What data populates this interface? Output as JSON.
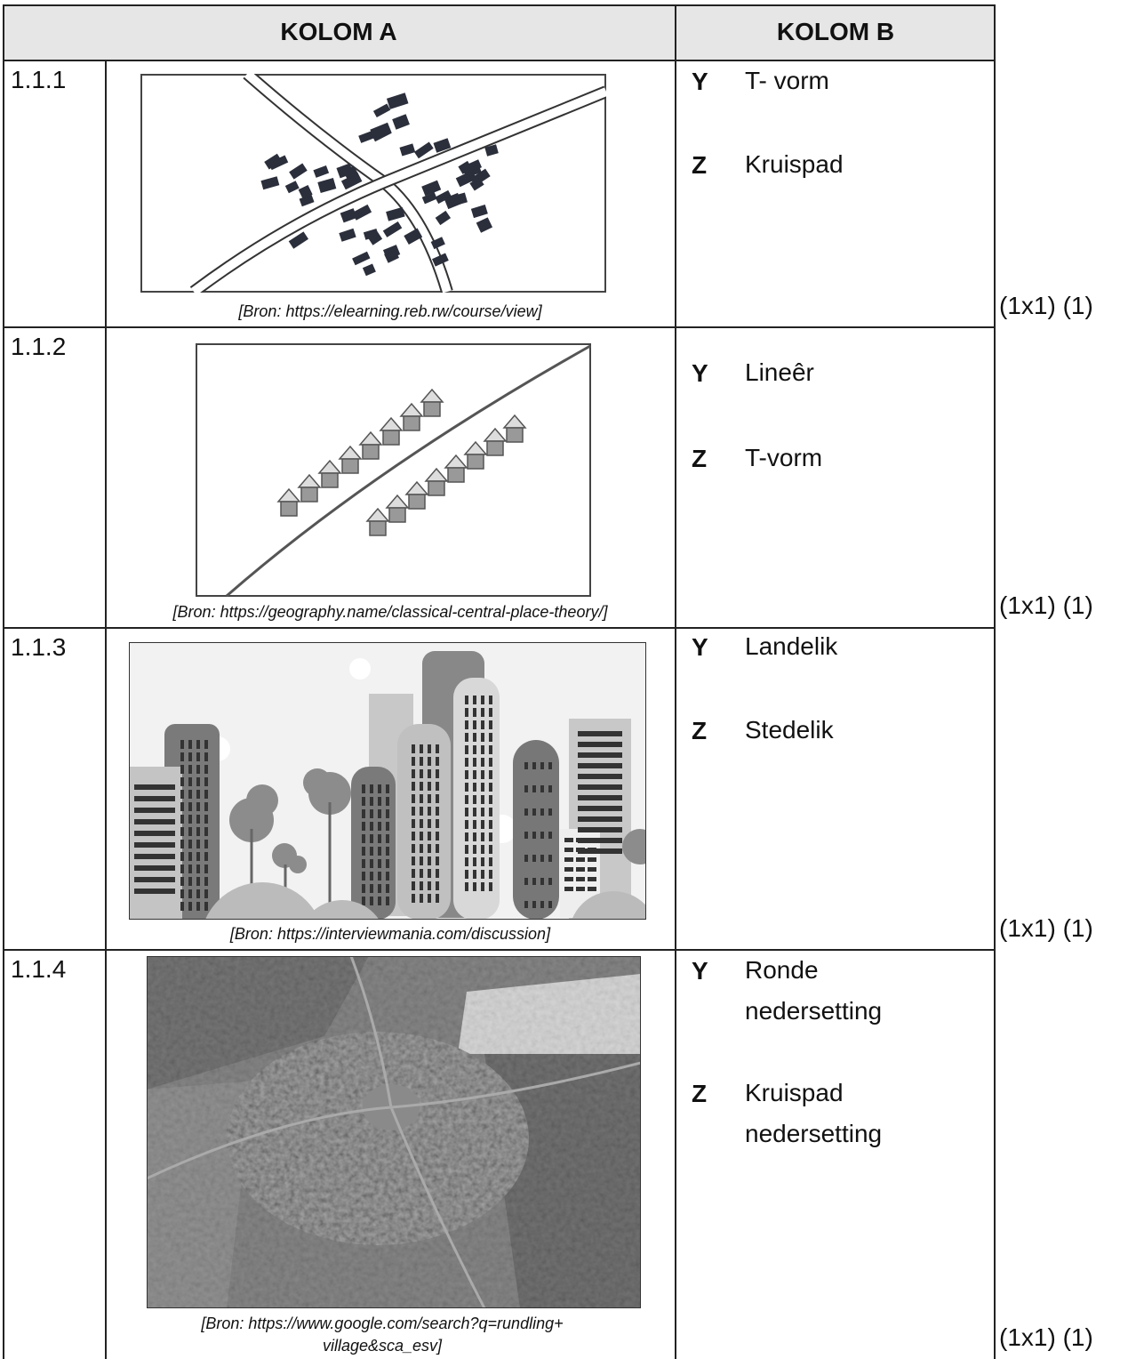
{
  "table": {
    "header": [
      "KOLOM A",
      "KOLOM B"
    ],
    "rows": [
      {
        "number": "1.1.1",
        "source": "[Bron: https://elearning.reb.rw/course/view]",
        "options": [
          {
            "letter": "Y",
            "text": "T- vorm"
          },
          {
            "letter": "Z",
            "text": "Kruispad"
          }
        ],
        "marks": "(1x1) (1)"
      },
      {
        "number": "1.1.2",
        "source": "[Bron: https://geography.name/classical-central-place-theory/]",
        "options": [
          {
            "letter": "Y",
            "text": "Lineêr"
          },
          {
            "letter": "Z",
            "text": "T-vorm"
          }
        ],
        "marks": "(1x1) (1)"
      },
      {
        "number": "1.1.3",
        "source": "[Bron: https://interviewmania.com/discussion]",
        "options": [
          {
            "letter": "Y",
            "text": "Landelik"
          },
          {
            "letter": "Z",
            "text": "Stedelik"
          }
        ],
        "marks": "(1x1) (1)"
      },
      {
        "number": "1.1.4",
        "source": "[Bron: https://www.google.com/search?q=rundling+ village&sca_esv]",
        "options": [
          {
            "letter": "Y",
            "text": "Ronde nedersetting"
          },
          {
            "letter": "Z",
            "text": "Kruispad nedersetting"
          }
        ],
        "marks": "(1x1) (1)"
      }
    ]
  }
}
